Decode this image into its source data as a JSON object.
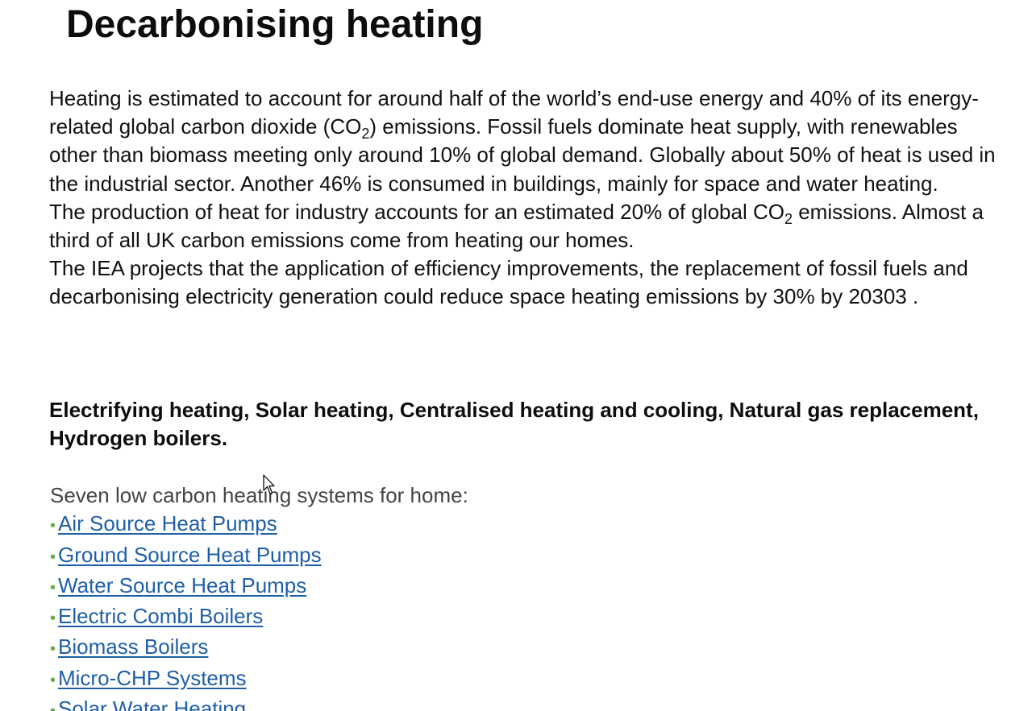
{
  "title": "Decarbonising heating",
  "intro": {
    "p1_a": "Heating is estimated to account for around half of the world’s end-use energy and 40% of its energy-related global carbon dioxide (CO",
    "p1_sub": "2",
    "p1_b": ") emissions. Fossil fuels dominate heat supply, with renewables other than biomass meeting only around 10% of global demand. Globally about 50% of heat is used in the industrial sector. Another 46% is consumed in buildings, mainly for space and water heating.",
    "p2_a": "The production of heat for industry accounts for an estimated 20% of global CO",
    "p2_sub": "2",
    "p2_b": " emissions. Almost a third of all UK carbon emissions come from heating our homes.",
    "p3": "The IEA projects that the application of efficiency improvements, the replacement of fossil fuels and decarbonising electricity generation could reduce space heating emissions by 30% by 20303 ."
  },
  "bold_line": "Electrifying heating, Solar heating, Centralised heating and cooling, Natural gas replacement, Hydrogen boilers.",
  "systems": {
    "intro": "Seven low carbon heating systems for home:",
    "bullet": "•",
    "items": [
      "Air Source Heat Pumps",
      "Ground Source Heat Pumps",
      "Water Source Heat Pumps",
      "Electric Combi Boilers",
      "Biomass Boilers",
      "Micro-CHP Systems",
      "Solar Water Heating"
    ]
  },
  "colors": {
    "link": "#1f5fa8",
    "bullet": "#6aa84f"
  }
}
